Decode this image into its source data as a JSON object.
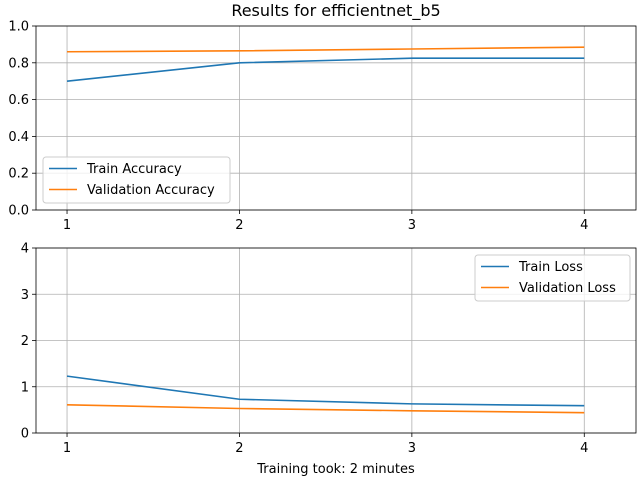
{
  "chart_data": [
    {
      "type": "line",
      "title": "Results for efficientnet_b5",
      "xlabel": "",
      "ylabel": "",
      "x": [
        1,
        2,
        3,
        4
      ],
      "xlim": [
        0.82,
        4.3
      ],
      "ylim": [
        0,
        1.0
      ],
      "yticks": [
        0.0,
        0.2,
        0.4,
        0.6,
        0.8,
        1.0
      ],
      "ytick_labels": [
        "0.0",
        "0.2",
        "0.4",
        "0.6",
        "0.8",
        "1.0"
      ],
      "xticks": [
        1,
        2,
        3,
        4
      ],
      "xtick_labels": [
        "1",
        "2",
        "3",
        "4"
      ],
      "grid": true,
      "legend_position": "lower-left",
      "series": [
        {
          "name": "Train Accuracy",
          "color": "#1f77b4",
          "values": [
            0.7,
            0.8,
            0.825,
            0.825
          ]
        },
        {
          "name": "Validation Accuracy",
          "color": "#ff7f0e",
          "values": [
            0.86,
            0.865,
            0.875,
            0.885
          ]
        }
      ]
    },
    {
      "type": "line",
      "title": "",
      "xlabel": "Training took: 2 minutes",
      "ylabel": "",
      "x": [
        1,
        2,
        3,
        4
      ],
      "xlim": [
        0.82,
        4.3
      ],
      "ylim": [
        0,
        4
      ],
      "yticks": [
        0,
        1,
        2,
        3,
        4
      ],
      "ytick_labels": [
        "0",
        "1",
        "2",
        "3",
        "4"
      ],
      "xticks": [
        1,
        2,
        3,
        4
      ],
      "xtick_labels": [
        "1",
        "2",
        "3",
        "4"
      ],
      "grid": true,
      "legend_position": "upper-right",
      "series": [
        {
          "name": "Train Loss",
          "color": "#1f77b4",
          "values": [
            1.23,
            0.73,
            0.63,
            0.59
          ]
        },
        {
          "name": "Validation Loss",
          "color": "#ff7f0e",
          "values": [
            0.61,
            0.53,
            0.48,
            0.44
          ]
        }
      ]
    }
  ]
}
